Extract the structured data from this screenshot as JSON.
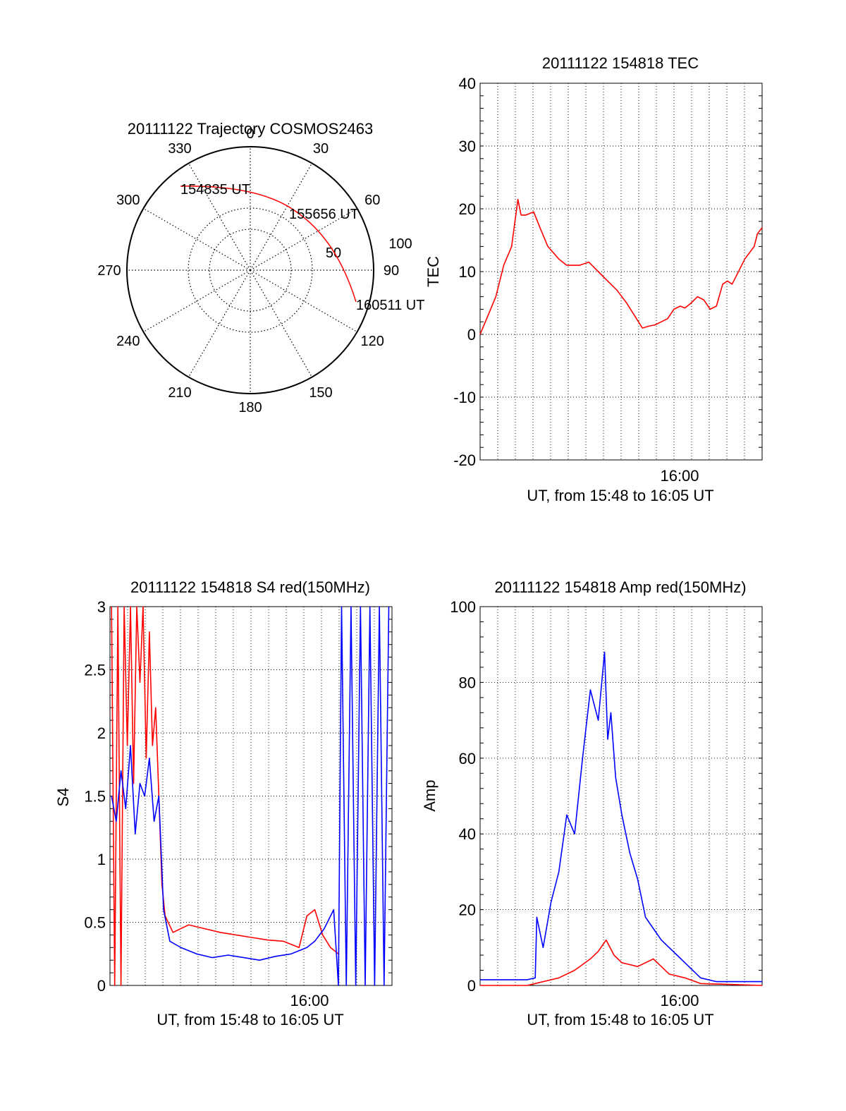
{
  "colors": {
    "red": "#ff0000",
    "blue": "#0000ff",
    "axis": "#000000",
    "grid": "#000000"
  },
  "chart_data": [
    {
      "id": "polar",
      "type": "polar-trajectory",
      "title": "20111122 Trajectory COSMOS2463",
      "azimuth_labels": [
        "0",
        "30",
        "60",
        "90",
        "120",
        "150",
        "180",
        "210",
        "240",
        "270",
        "300",
        "330"
      ],
      "radial_labels": [
        "50",
        "100"
      ],
      "track": {
        "from": {
          "azimuth": 330,
          "elevation": 3
        },
        "to": {
          "azimuth": 117,
          "elevation": 7
        }
      },
      "time_labels": [
        "154835 UT",
        "155656 UT",
        "160511 UT"
      ]
    },
    {
      "id": "tec",
      "type": "line",
      "title": "20111122 154818 TEC",
      "xlabel": "UT, from 15:48 to 16:05 UT",
      "ylabel": "TEC",
      "xtick_label": "16:00",
      "ylim": [
        -20,
        40
      ],
      "yticks": [
        "-20",
        "-10",
        "0",
        "10",
        "20",
        "30",
        "40"
      ],
      "grid": true,
      "series": [
        {
          "color": "red",
          "x": [
            0,
            0.5,
            1.0,
            1.5,
            2.0,
            2.4,
            2.6,
            2.9,
            3.4,
            3.8,
            4.3,
            5.0,
            5.5,
            6.3,
            6.9,
            7.5,
            8.1,
            8.7,
            9.3,
            9.8,
            10.3,
            10.7,
            11.1,
            11.5,
            11.9,
            12.3,
            12.7,
            13.0,
            13.4,
            13.8,
            14.2,
            14.6,
            15.0,
            15.4,
            15.7,
            16.0,
            16.4,
            16.8,
            17.1,
            17.4,
            17.6,
            17.9
          ],
          "y": [
            0,
            3,
            6,
            11,
            14,
            21.5,
            19,
            19,
            19.5,
            17,
            14,
            12,
            11,
            11,
            11.5,
            10,
            8.5,
            7,
            5,
            3,
            1,
            1.3,
            1.5,
            2,
            2.5,
            4,
            4.5,
            4.2,
            5,
            6,
            5.5,
            4,
            4.5,
            8,
            8.5,
            8,
            10,
            12,
            13,
            14,
            16,
            17
          ]
        }
      ]
    },
    {
      "id": "s4",
      "type": "line",
      "title": "20111122 154818 S4 red(150MHz)",
      "xlabel": "UT, from 15:48 to 16:05 UT",
      "ylabel": "S4",
      "xtick_label": "16:00",
      "ylim": [
        0,
        3
      ],
      "yticks": [
        "0",
        "0.5",
        "1",
        "1.5",
        "2",
        "2.5",
        "3"
      ],
      "grid": true,
      "series": [
        {
          "color": "red",
          "x": [
            0.1,
            0.3,
            0.5,
            0.7,
            0.9,
            1.1,
            1.3,
            1.5,
            1.7,
            1.9,
            2.1,
            2.3,
            2.5,
            2.7,
            2.9,
            3.1,
            3.3,
            3.5,
            4.0,
            5.0,
            6.0,
            7.0,
            8.0,
            9.0,
            10.0,
            11.0,
            12.0,
            12.5,
            13.0,
            13.5,
            14.0,
            14.5
          ],
          "y": [
            3,
            0,
            3,
            0,
            3,
            1.9,
            3,
            1.6,
            3,
            2.4,
            3,
            1.8,
            2.8,
            1.9,
            2.2,
            1.5,
            0.8,
            0.55,
            0.42,
            0.48,
            0.45,
            0.42,
            0.4,
            0.38,
            0.36,
            0.35,
            0.3,
            0.55,
            0.6,
            0.4,
            0.3,
            0.25
          ]
        },
        {
          "color": "blue",
          "x": [
            0.1,
            0.4,
            0.7,
            1.0,
            1.3,
            1.6,
            1.9,
            2.2,
            2.5,
            2.8,
            3.1,
            3.4,
            3.8,
            4.5,
            5.5,
            6.5,
            7.5,
            8.5,
            9.5,
            10.5,
            11.5,
            12.5,
            13.0,
            13.6,
            14.2,
            14.5,
            14.7,
            15.0,
            15.3,
            15.6,
            15.9,
            16.2,
            16.5,
            16.8,
            17.1,
            17.4,
            17.7
          ],
          "y": [
            1.5,
            1.3,
            1.7,
            1.4,
            1.9,
            1.2,
            1.6,
            1.5,
            1.8,
            1.3,
            1.5,
            0.6,
            0.35,
            0.3,
            0.25,
            0.22,
            0.24,
            0.22,
            0.2,
            0.23,
            0.25,
            0.3,
            0.35,
            0.45,
            0.6,
            0,
            3,
            0,
            3,
            0,
            3,
            0,
            3,
            0,
            3,
            0,
            3
          ]
        }
      ]
    },
    {
      "id": "amp",
      "type": "line",
      "title": "20111122 154818 Amp red(150MHz)",
      "xlabel": "UT, from 15:48 to 16:05 UT",
      "ylabel": "Amp",
      "xtick_label": "16:00",
      "ylim": [
        0,
        100
      ],
      "yticks": [
        "0",
        "20",
        "40",
        "60",
        "80",
        "100"
      ],
      "grid": true,
      "series": [
        {
          "color": "blue",
          "x": [
            0,
            1,
            2,
            3,
            3.5,
            3.6,
            4.0,
            4.5,
            5.0,
            5.5,
            6.0,
            6.5,
            7.0,
            7.5,
            7.9,
            8.1,
            8.3,
            8.6,
            9.0,
            9.5,
            10.0,
            10.5,
            11.0,
            11.5,
            12.0,
            12.5,
            13.0,
            14.0,
            15.0,
            16.0,
            17.0,
            17.9
          ],
          "y": [
            1.5,
            1.5,
            1.5,
            1.5,
            2,
            18,
            10,
            22,
            30,
            45,
            40,
            60,
            78,
            70,
            88,
            65,
            72,
            55,
            45,
            35,
            28,
            18,
            15,
            12,
            10,
            8,
            6,
            2,
            1,
            1,
            1,
            1
          ]
        },
        {
          "color": "red",
          "x": [
            0,
            3,
            4,
            5,
            6,
            7,
            7.5,
            8.0,
            8.5,
            9.0,
            10.0,
            11.0,
            12.0,
            13.0,
            14.0,
            17.9
          ],
          "y": [
            0,
            0,
            1,
            2,
            4,
            7,
            9,
            12,
            8,
            6,
            5,
            7,
            3,
            2,
            0.5,
            0
          ]
        }
      ]
    }
  ]
}
